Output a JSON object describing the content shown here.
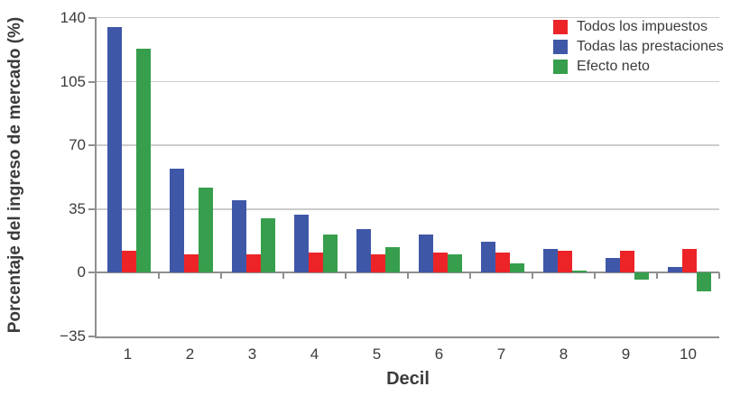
{
  "chart_data": {
    "type": "bar",
    "title": "",
    "xlabel": "Decil",
    "ylabel": "Porcentaje del ingreso de mercado (%)",
    "categories": [
      "1",
      "2",
      "3",
      "4",
      "5",
      "6",
      "7",
      "8",
      "9",
      "10"
    ],
    "series": [
      {
        "name": "Todos los impuestos",
        "color": "#ec2427",
        "values": [
          12,
          10,
          10,
          11,
          10,
          11,
          11,
          12,
          12,
          13
        ]
      },
      {
        "name": "Todas las prestaciones",
        "color": "#3f57a7",
        "values": [
          135,
          57,
          40,
          32,
          24,
          21,
          17,
          13,
          8,
          3
        ]
      },
      {
        "name": "Efecto neto",
        "color": "#369e4c",
        "values": [
          123,
          47,
          30,
          21,
          14,
          10,
          5,
          1,
          -4,
          -10
        ]
      }
    ],
    "series_plot_order": [
      "Todas las prestaciones",
      "Todos los impuestos",
      "Efecto neto"
    ],
    "ylim": [
      -35,
      140
    ],
    "yticks": [
      140,
      105,
      70,
      35,
      0,
      -35
    ],
    "gridlines": [
      105,
      70,
      35
    ],
    "grid": "horizontal",
    "legend_position": "top-right",
    "axis_color": "#8f8f8f",
    "gridline_color": "#cccccc",
    "text_color": "#3b3b3b"
  }
}
